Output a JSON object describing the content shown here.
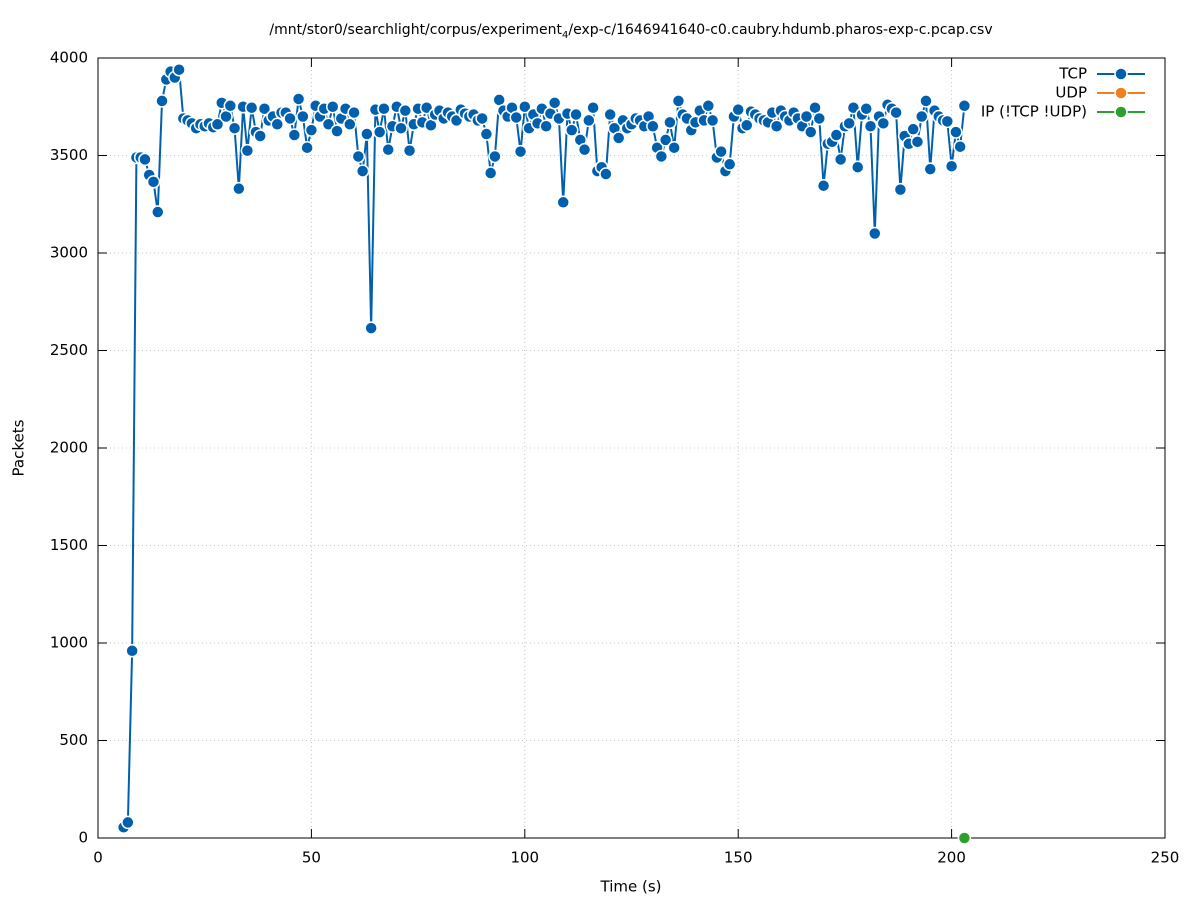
{
  "chart_data": {
    "type": "line",
    "title": [
      "/mnt/stor0/searchlight/corpus/experiment",
      "4",
      "/exp-c/1646941640-c0.caubry.hdumb.pharos-exp-c.pcap.csv"
    ],
    "xlabel": "Time (s)",
    "ylabel": "Packets",
    "xlim": [
      0,
      250
    ],
    "xticks": [
      0,
      50,
      100,
      150,
      200,
      250
    ],
    "ylim": [
      0,
      4000
    ],
    "yticks": [
      0,
      500,
      1000,
      1500,
      2000,
      2500,
      3000,
      3500,
      4000
    ],
    "grid": true,
    "legend": "top-right",
    "series": [
      {
        "name": "TCP",
        "color": "#0060ad",
        "x": [
          6,
          7,
          8,
          9,
          10,
          11,
          12,
          13,
          14,
          15,
          16,
          17,
          18,
          19,
          20,
          21,
          22,
          23,
          24,
          25,
          26,
          27,
          28,
          29,
          30,
          31,
          32,
          33,
          34,
          35,
          36,
          37,
          38,
          39,
          40,
          41,
          42,
          43,
          44,
          45,
          46,
          47,
          48,
          49,
          50,
          51,
          52,
          53,
          54,
          55,
          56,
          57,
          58,
          59,
          60,
          61,
          62,
          63,
          64,
          65,
          66,
          67,
          68,
          69,
          70,
          71,
          72,
          73,
          74,
          75,
          76,
          77,
          78,
          79,
          80,
          81,
          82,
          83,
          84,
          85,
          86,
          87,
          88,
          89,
          90,
          91,
          92,
          93,
          94,
          95,
          96,
          97,
          98,
          99,
          100,
          101,
          102,
          103,
          104,
          105,
          106,
          107,
          108,
          109,
          110,
          111,
          112,
          113,
          114,
          115,
          116,
          117,
          118,
          119,
          120,
          121,
          122,
          123,
          124,
          125,
          126,
          127,
          128,
          129,
          130,
          131,
          132,
          133,
          134,
          135,
          136,
          137,
          138,
          139,
          140,
          141,
          142,
          143,
          144,
          145,
          146,
          147,
          148,
          149,
          150,
          151,
          152,
          153,
          154,
          155,
          156,
          157,
          158,
          159,
          160,
          161,
          162,
          163,
          164,
          165,
          166,
          167,
          168,
          169,
          170,
          171,
          172,
          173,
          174,
          175,
          176,
          177,
          178,
          179,
          180,
          181,
          182,
          183,
          184,
          185,
          186,
          187,
          188,
          189,
          190,
          191,
          192,
          193,
          194,
          195,
          196,
          197,
          198,
          199,
          200,
          201,
          202,
          203
        ],
        "values": [
          55,
          80,
          960,
          3490,
          3490,
          3480,
          3400,
          3365,
          3210,
          3780,
          3890,
          3930,
          3900,
          3940,
          3690,
          3680,
          3665,
          3640,
          3660,
          3650,
          3665,
          3645,
          3660,
          3770,
          3700,
          3755,
          3640,
          3330,
          3750,
          3525,
          3745,
          3620,
          3600,
          3740,
          3680,
          3700,
          3660,
          3720,
          3720,
          3690,
          3605,
          3790,
          3700,
          3540,
          3630,
          3755,
          3700,
          3740,
          3660,
          3750,
          3625,
          3690,
          3740,
          3660,
          3720,
          3495,
          3420,
          3610,
          2615,
          3735,
          3620,
          3740,
          3530,
          3650,
          3750,
          3640,
          3730,
          3525,
          3660,
          3740,
          3670,
          3745,
          3655,
          3710,
          3730,
          3690,
          3720,
          3700,
          3680,
          3735,
          3715,
          3700,
          3710,
          3680,
          3690,
          3610,
          3410,
          3495,
          3785,
          3730,
          3700,
          3745,
          3695,
          3520,
          3750,
          3640,
          3710,
          3665,
          3740,
          3650,
          3715,
          3770,
          3690,
          3260,
          3715,
          3630,
          3710,
          3580,
          3530,
          3680,
          3745,
          3420,
          3440,
          3405,
          3710,
          3640,
          3590,
          3680,
          3640,
          3660,
          3690,
          3680,
          3650,
          3700,
          3650,
          3540,
          3495,
          3580,
          3670,
          3540,
          3780,
          3710,
          3690,
          3630,
          3670,
          3730,
          3680,
          3755,
          3680,
          3490,
          3520,
          3420,
          3455,
          3700,
          3735,
          3640,
          3655,
          3725,
          3710,
          3690,
          3680,
          3670,
          3720,
          3650,
          3730,
          3700,
          3680,
          3720,
          3690,
          3650,
          3700,
          3620,
          3745,
          3690,
          3345,
          3560,
          3570,
          3605,
          3480,
          3650,
          3665,
          3745,
          3440,
          3710,
          3740,
          3650,
          3100,
          3700,
          3665,
          3760,
          3740,
          3720,
          3325,
          3600,
          3560,
          3635,
          3570,
          3700,
          3780,
          3430,
          3730,
          3700,
          3680,
          3675,
          3445,
          3620,
          3545,
          3755
        ]
      },
      {
        "name": "UDP",
        "color": "#f07f1e",
        "x": [],
        "values": []
      },
      {
        "name": "IP (!TCP  !UDP)",
        "color": "#2ca02c",
        "x": [
          203
        ],
        "values": [
          0
        ]
      }
    ]
  }
}
